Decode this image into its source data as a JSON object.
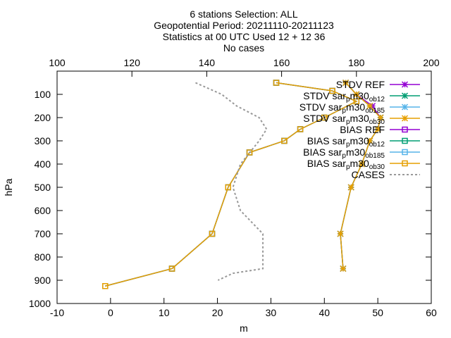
{
  "chart_data": {
    "type": "line",
    "title_lines": [
      "6 stations Selection: ALL",
      "Geopotential  Period: 20211110-20211123",
      "Statistics at 00 UTC  Used 12 + 12 36",
      "No cases"
    ],
    "xlabel": "m",
    "ylabel": "hPa",
    "xlim": [
      -10,
      60
    ],
    "ylim": [
      1000,
      0
    ],
    "x_ticks": [
      "-10",
      "0",
      "10",
      "20",
      "30",
      "40",
      "50",
      "60"
    ],
    "y_ticks": [
      "100",
      "200",
      "300",
      "400",
      "500",
      "600",
      "700",
      "800",
      "900",
      "1000"
    ],
    "x2lim": [
      100,
      200
    ],
    "x2_ticks": [
      "100",
      "120",
      "140",
      "160",
      "180",
      "200"
    ],
    "legend_position": "top-right",
    "grid": false,
    "series": [
      {
        "name": "STDV REF",
        "label_parts": [
          "STDV REF"
        ],
        "color": "#9400d3",
        "marker": "x-star",
        "style": "solid",
        "x": [
          44,
          46,
          49,
          50.5,
          50,
          48.5,
          47,
          45,
          43,
          43.5
        ],
        "y": [
          50,
          100,
          150,
          200,
          250,
          300,
          400,
          500,
          700,
          850
        ]
      },
      {
        "name": "STDV sar_p m30_ob12",
        "label_parts": [
          "STDV sar",
          "p",
          "m30",
          "ob12"
        ],
        "color": "#009e73",
        "marker": "x-star",
        "style": "solid",
        "x": [
          44,
          46,
          48.5,
          50.5,
          50,
          48.5,
          47,
          45,
          43,
          43.5
        ],
        "y": [
          50,
          100,
          150,
          200,
          250,
          300,
          400,
          500,
          700,
          850
        ]
      },
      {
        "name": "STDV sar_p m30_ob185",
        "label_parts": [
          "STDV sar",
          "p",
          "m30",
          "ob185"
        ],
        "color": "#56b4e9",
        "marker": "x-star",
        "style": "solid",
        "x": [
          44,
          46,
          48.5,
          50.5,
          50,
          48.5,
          47,
          45,
          43,
          43.5
        ],
        "y": [
          50,
          100,
          150,
          200,
          250,
          300,
          400,
          500,
          700,
          850
        ]
      },
      {
        "name": "STDV sar_p m30_ob30",
        "label_parts": [
          "STDV sar",
          "p",
          "m30",
          "ob30"
        ],
        "color": "#e69f00",
        "marker": "x-star",
        "style": "solid",
        "x": [
          44,
          46,
          48.5,
          50.5,
          50,
          48.5,
          47,
          45,
          43,
          43.5
        ],
        "y": [
          50,
          100,
          150,
          200,
          250,
          300,
          400,
          500,
          700,
          850
        ]
      },
      {
        "name": "BIAS REF",
        "label_parts": [
          "BIAS REF"
        ],
        "color": "#9400d3",
        "marker": "square",
        "style": "solid",
        "x": [
          31,
          41.5,
          46,
          40,
          35.5,
          32.5,
          26,
          22,
          19,
          11.5,
          -1
        ],
        "y": [
          50,
          85,
          130,
          200,
          250,
          300,
          350,
          500,
          700,
          850,
          925
        ]
      },
      {
        "name": "BIAS sar_p m30_ob12",
        "label_parts": [
          "BIAS sar",
          "p",
          "m30",
          "ob12"
        ],
        "color": "#009e73",
        "marker": "square",
        "style": "solid",
        "x": [
          31,
          41.5,
          46,
          40,
          35.5,
          32.5,
          26,
          22,
          19,
          11.5,
          -1
        ],
        "y": [
          50,
          85,
          130,
          200,
          250,
          300,
          350,
          500,
          700,
          850,
          925
        ]
      },
      {
        "name": "BIAS sar_p m30_ob185",
        "label_parts": [
          "BIAS sar",
          "p",
          "m30",
          "ob185"
        ],
        "color": "#56b4e9",
        "marker": "square",
        "style": "solid",
        "x": [
          31,
          41.5,
          46,
          40,
          35.5,
          32.5,
          26,
          22,
          19,
          11.5,
          -1
        ],
        "y": [
          50,
          85,
          130,
          200,
          250,
          300,
          350,
          500,
          700,
          850,
          925
        ]
      },
      {
        "name": "BIAS sar_p m30_ob30",
        "label_parts": [
          "BIAS sar",
          "p",
          "m30",
          "ob30"
        ],
        "color": "#e69f00",
        "marker": "square",
        "style": "solid",
        "x": [
          31,
          41.5,
          46,
          40,
          35.5,
          32.5,
          26,
          22,
          19,
          11.5,
          -1
        ],
        "y": [
          50,
          85,
          130,
          200,
          250,
          300,
          350,
          500,
          700,
          850,
          925
        ]
      },
      {
        "name": "CASES",
        "label_parts": [
          "CASES"
        ],
        "color": "#999999",
        "marker": "none",
        "style": "dashed",
        "axis": "x2",
        "x": [
          137,
          144,
          148,
          154,
          156,
          154,
          149,
          147,
          149,
          155,
          155,
          147,
          143
        ],
        "y": [
          50,
          100,
          150,
          200,
          250,
          300,
          400,
          500,
          600,
          700,
          850,
          870,
          900
        ]
      }
    ]
  }
}
